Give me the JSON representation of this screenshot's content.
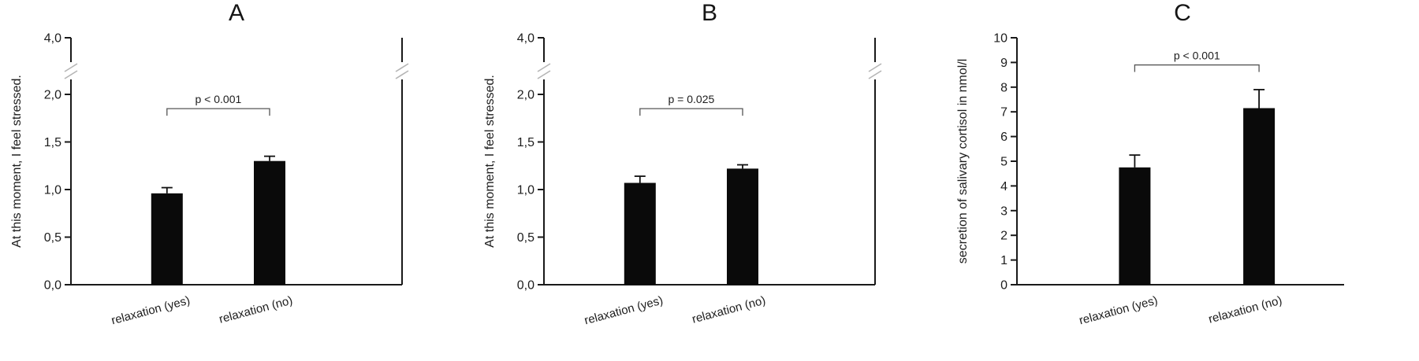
{
  "figure": {
    "background": "#ffffff",
    "panel_labels": [
      "A",
      "B",
      "C"
    ]
  },
  "chart_data": [
    {
      "type": "bar",
      "title": "A",
      "ylabel": "At this moment, I feel stressed.",
      "xlabel": "",
      "axis": {
        "break": true,
        "linear_max": 2.0,
        "max": 4.0,
        "tick_values": [
          0,
          0.5,
          1.0,
          1.5,
          2.0,
          4.0
        ],
        "tick_labels": [
          "0,0",
          "0,5",
          "1,0",
          "1,5",
          "2,0",
          "4,0"
        ]
      },
      "categories": [
        "relaxation (yes)",
        "relaxation (no)"
      ],
      "values": [
        0.96,
        1.3
      ],
      "errors": [
        0.06,
        0.05
      ],
      "significance": {
        "label": "p < 0.001",
        "y": 1.85
      },
      "frame_right": true,
      "bar_color": "#0a0a0a",
      "bar_positions": [
        0.29,
        0.6
      ]
    },
    {
      "type": "bar",
      "title": "B",
      "ylabel": "At this moment, I feel stressed.",
      "xlabel": "",
      "axis": {
        "break": true,
        "linear_max": 2.0,
        "max": 4.0,
        "tick_values": [
          0,
          0.5,
          1.0,
          1.5,
          2.0,
          4.0
        ],
        "tick_labels": [
          "0,0",
          "0,5",
          "1,0",
          "1,5",
          "2,0",
          "4,0"
        ]
      },
      "categories": [
        "relaxation (yes)",
        "relaxation (no)"
      ],
      "values": [
        1.07,
        1.22
      ],
      "errors": [
        0.07,
        0.04
      ],
      "significance": {
        "label": "p = 0.025",
        "y": 1.85
      },
      "frame_right": true,
      "bar_color": "#0a0a0a",
      "bar_positions": [
        0.29,
        0.6
      ]
    },
    {
      "type": "bar",
      "title": "C",
      "ylabel": "secretion of salivary cortisol in nmol/l",
      "xlabel": "",
      "axis": {
        "break": false,
        "max": 10,
        "tick_values": [
          0,
          1,
          2,
          3,
          4,
          5,
          6,
          7,
          8,
          9,
          10
        ],
        "tick_labels": [
          "0",
          "1",
          "2",
          "3",
          "4",
          "5",
          "6",
          "7",
          "8",
          "9",
          "10"
        ]
      },
      "categories": [
        "relaxation (yes)",
        "relaxation (no)"
      ],
      "values": [
        4.75,
        7.15
      ],
      "errors": [
        0.5,
        0.75
      ],
      "significance": {
        "label": "p < 0.001",
        "y": 8.9
      },
      "frame_right": false,
      "bar_color": "#0a0a0a",
      "bar_positions": [
        0.36,
        0.74
      ]
    }
  ]
}
